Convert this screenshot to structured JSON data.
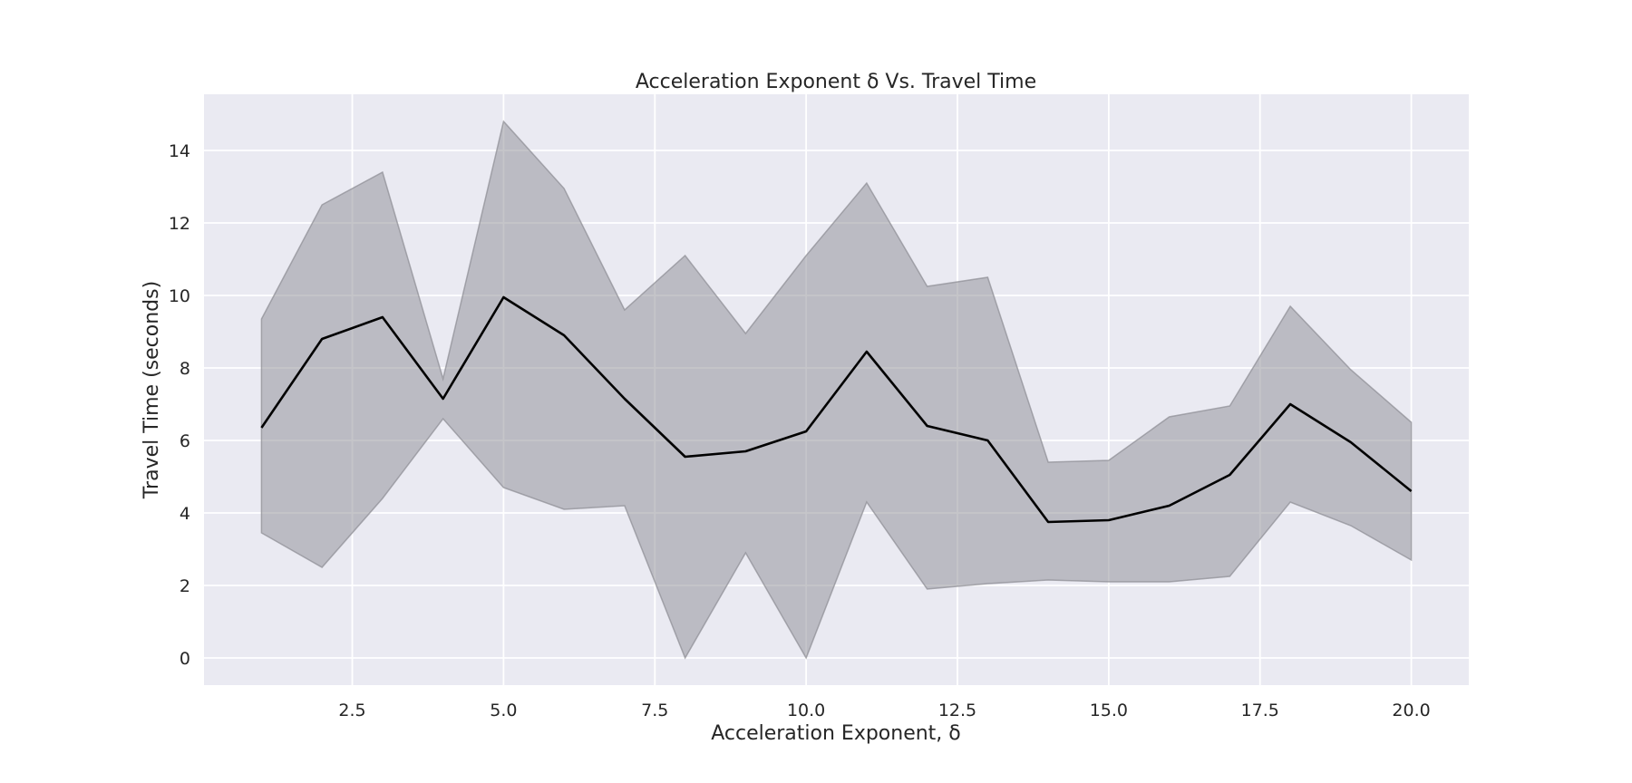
{
  "chart_data": {
    "type": "line",
    "title": "Acceleration Exponent δ Vs. Travel Time",
    "xlabel": "Acceleration Exponent, δ",
    "ylabel": "Travel Time (seconds)",
    "xlim": [
      0.05,
      20.95
    ],
    "ylim": [
      -0.75,
      15.55
    ],
    "grid": true,
    "x_ticks": [
      2.5,
      5.0,
      7.5,
      10.0,
      12.5,
      15.0,
      17.5,
      20.0
    ],
    "x_tick_labels": [
      "2.5",
      "5.0",
      "7.5",
      "10.0",
      "12.5",
      "15.0",
      "17.5",
      "20.0"
    ],
    "y_ticks": [
      0,
      2,
      4,
      6,
      8,
      10,
      12,
      14
    ],
    "y_tick_labels": [
      "0",
      "2",
      "4",
      "6",
      "8",
      "10",
      "12",
      "14"
    ],
    "x": [
      1,
      2,
      3,
      4,
      5,
      6,
      7,
      8,
      9,
      10,
      11,
      12,
      13,
      14,
      15,
      16,
      17,
      18,
      19,
      20
    ],
    "series": [
      {
        "values": [
          6.35,
          8.8,
          9.4,
          7.15,
          9.95,
          8.9,
          7.15,
          5.55,
          5.7,
          6.25,
          8.45,
          6.4,
          6.0,
          3.75,
          3.8,
          4.2,
          5.05,
          7.0,
          5.95,
          4.6
        ],
        "lower": [
          3.45,
          2.5,
          4.4,
          6.6,
          4.7,
          4.1,
          4.2,
          0.0,
          2.9,
          0.0,
          4.3,
          1.9,
          2.05,
          2.15,
          2.1,
          2.1,
          2.25,
          4.3,
          3.65,
          2.7
        ],
        "upper": [
          9.35,
          12.5,
          13.4,
          7.7,
          14.8,
          12.95,
          9.6,
          11.1,
          8.95,
          11.1,
          13.1,
          10.25,
          10.5,
          5.4,
          5.45,
          6.65,
          6.95,
          9.7,
          7.95,
          6.5
        ],
        "color": "#000000",
        "band_color": "#8c8c93"
      }
    ],
    "colors": {
      "plot_background": "#eaeaf2",
      "grid": "#ffffff",
      "text": "#262626"
    }
  }
}
